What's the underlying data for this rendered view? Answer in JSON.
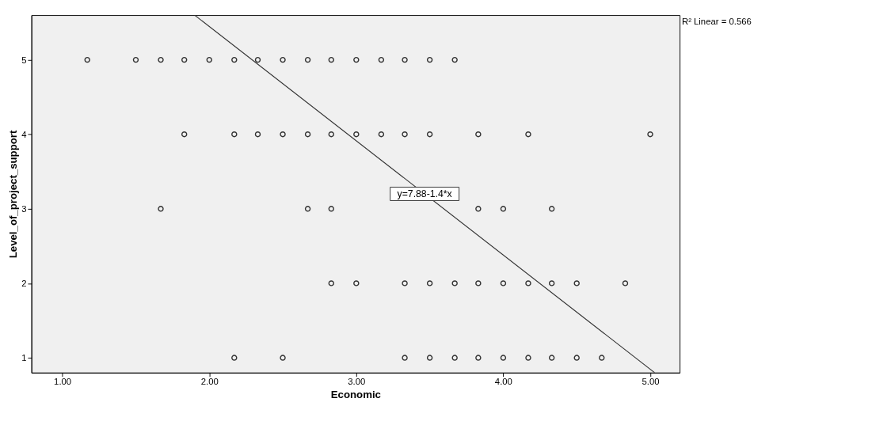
{
  "chart_data": {
    "type": "scatter",
    "xlabel": "Economic",
    "ylabel": "Level_of_project_support",
    "xlim": [
      0.79,
      5.2
    ],
    "ylim": [
      0.8,
      5.6
    ],
    "xticks": [
      {
        "value": 1,
        "label": "1.00"
      },
      {
        "value": 2,
        "label": "2.00"
      },
      {
        "value": 3,
        "label": "3.00"
      },
      {
        "value": 4,
        "label": "4.00"
      },
      {
        "value": 5,
        "label": "5.00"
      }
    ],
    "yticks": [
      1,
      2,
      3,
      4,
      5
    ],
    "grid": false,
    "series": [
      {
        "color": "#333333",
        "marker": "circle",
        "x": [
          1.17,
          1.5,
          1.67,
          1.83,
          2.0,
          2.17,
          2.33,
          2.5,
          2.67,
          2.83,
          3.0,
          3.17,
          3.33,
          3.5,
          3.67,
          1.83,
          2.17,
          2.33,
          2.5,
          2.67,
          2.83,
          3.0,
          3.17,
          3.33,
          3.5,
          3.83,
          4.17,
          5.0,
          1.67,
          2.67,
          2.83,
          3.83,
          4.0,
          4.33,
          2.83,
          3.0,
          3.33,
          3.5,
          3.67,
          3.83,
          4.0,
          4.17,
          4.33,
          4.5,
          4.83,
          2.17,
          2.5,
          3.33,
          3.5,
          3.67,
          3.83,
          4.0,
          4.17,
          4.33,
          4.5,
          4.67
        ],
        "values": [
          5,
          5,
          5,
          5,
          5,
          5,
          5,
          5,
          5,
          5,
          5,
          5,
          5,
          5,
          5,
          4,
          4,
          4,
          4,
          4,
          4,
          4,
          4,
          4,
          4,
          4,
          4,
          4,
          3,
          3,
          3,
          3,
          3,
          3,
          2,
          2,
          2,
          2,
          2,
          2,
          2,
          2,
          2,
          2,
          2,
          1,
          1,
          1,
          1,
          1,
          1,
          1,
          1,
          1,
          1,
          1
        ]
      },
      {
        "type": "line",
        "color": "#333333",
        "x": [
          1.9,
          5.03
        ],
        "values": [
          5.6,
          0.8
        ]
      }
    ],
    "annotations": [
      "y=7.88-1.4*x",
      "R² Linear = 0.566"
    ]
  }
}
